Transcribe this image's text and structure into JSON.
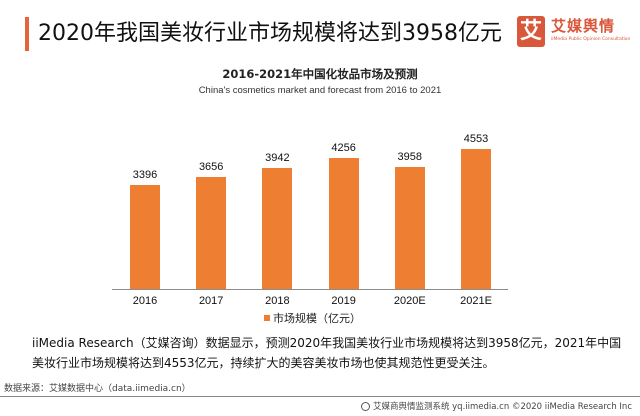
{
  "header": {
    "title": "2020年我国美妆行业市场规模将达到3958亿元",
    "accent_color": "#e4643e"
  },
  "logo": {
    "glyph": "艾",
    "name": "艾媒舆情",
    "tagline": "iiMedia Public Opinion Consultation",
    "color": "#d9573a"
  },
  "chart": {
    "title": "2016-2021年中国化妆品市场及预测",
    "subtitle": "China's cosmetics market and forecast from 2016 to 2021",
    "legend_label": "市场规模（亿元）",
    "bar_color": "#ee7e32"
  },
  "chart_data": {
    "type": "bar",
    "title": "2016-2021年中国化妆品市场及预测",
    "subtitle": "China's cosmetics market and forecast from 2016 to 2021",
    "categories": [
      "2016",
      "2017",
      "2018",
      "2019",
      "2020E",
      "2021E"
    ],
    "series": [
      {
        "name": "市场规模（亿元）",
        "values": [
          3396,
          3656,
          3942,
          4256,
          3958,
          4553
        ]
      }
    ],
    "values": [
      3396,
      3656,
      3942,
      4256,
      3958,
      4553
    ],
    "xlabel": "",
    "ylabel": "",
    "ylim": [
      0,
      4553
    ],
    "grid": false,
    "legend_position": "bottom",
    "data_labels": true
  },
  "description": "iiMedia Research（艾媒咨询）数据显示，预测2020年我国美妆行业市场规模将达到3958亿元，2021年中国美妆行业市场规模将达到4553亿元，持续扩大的美容美妆市场也使其规范性更受关注。",
  "source": "数据来源：艾媒数据中心（data.iimedia.cn）",
  "footer": {
    "text": "艾媒商舆情监测系统 yq.iimedia.cn  ©2020  iiMedia Research  Inc"
  }
}
